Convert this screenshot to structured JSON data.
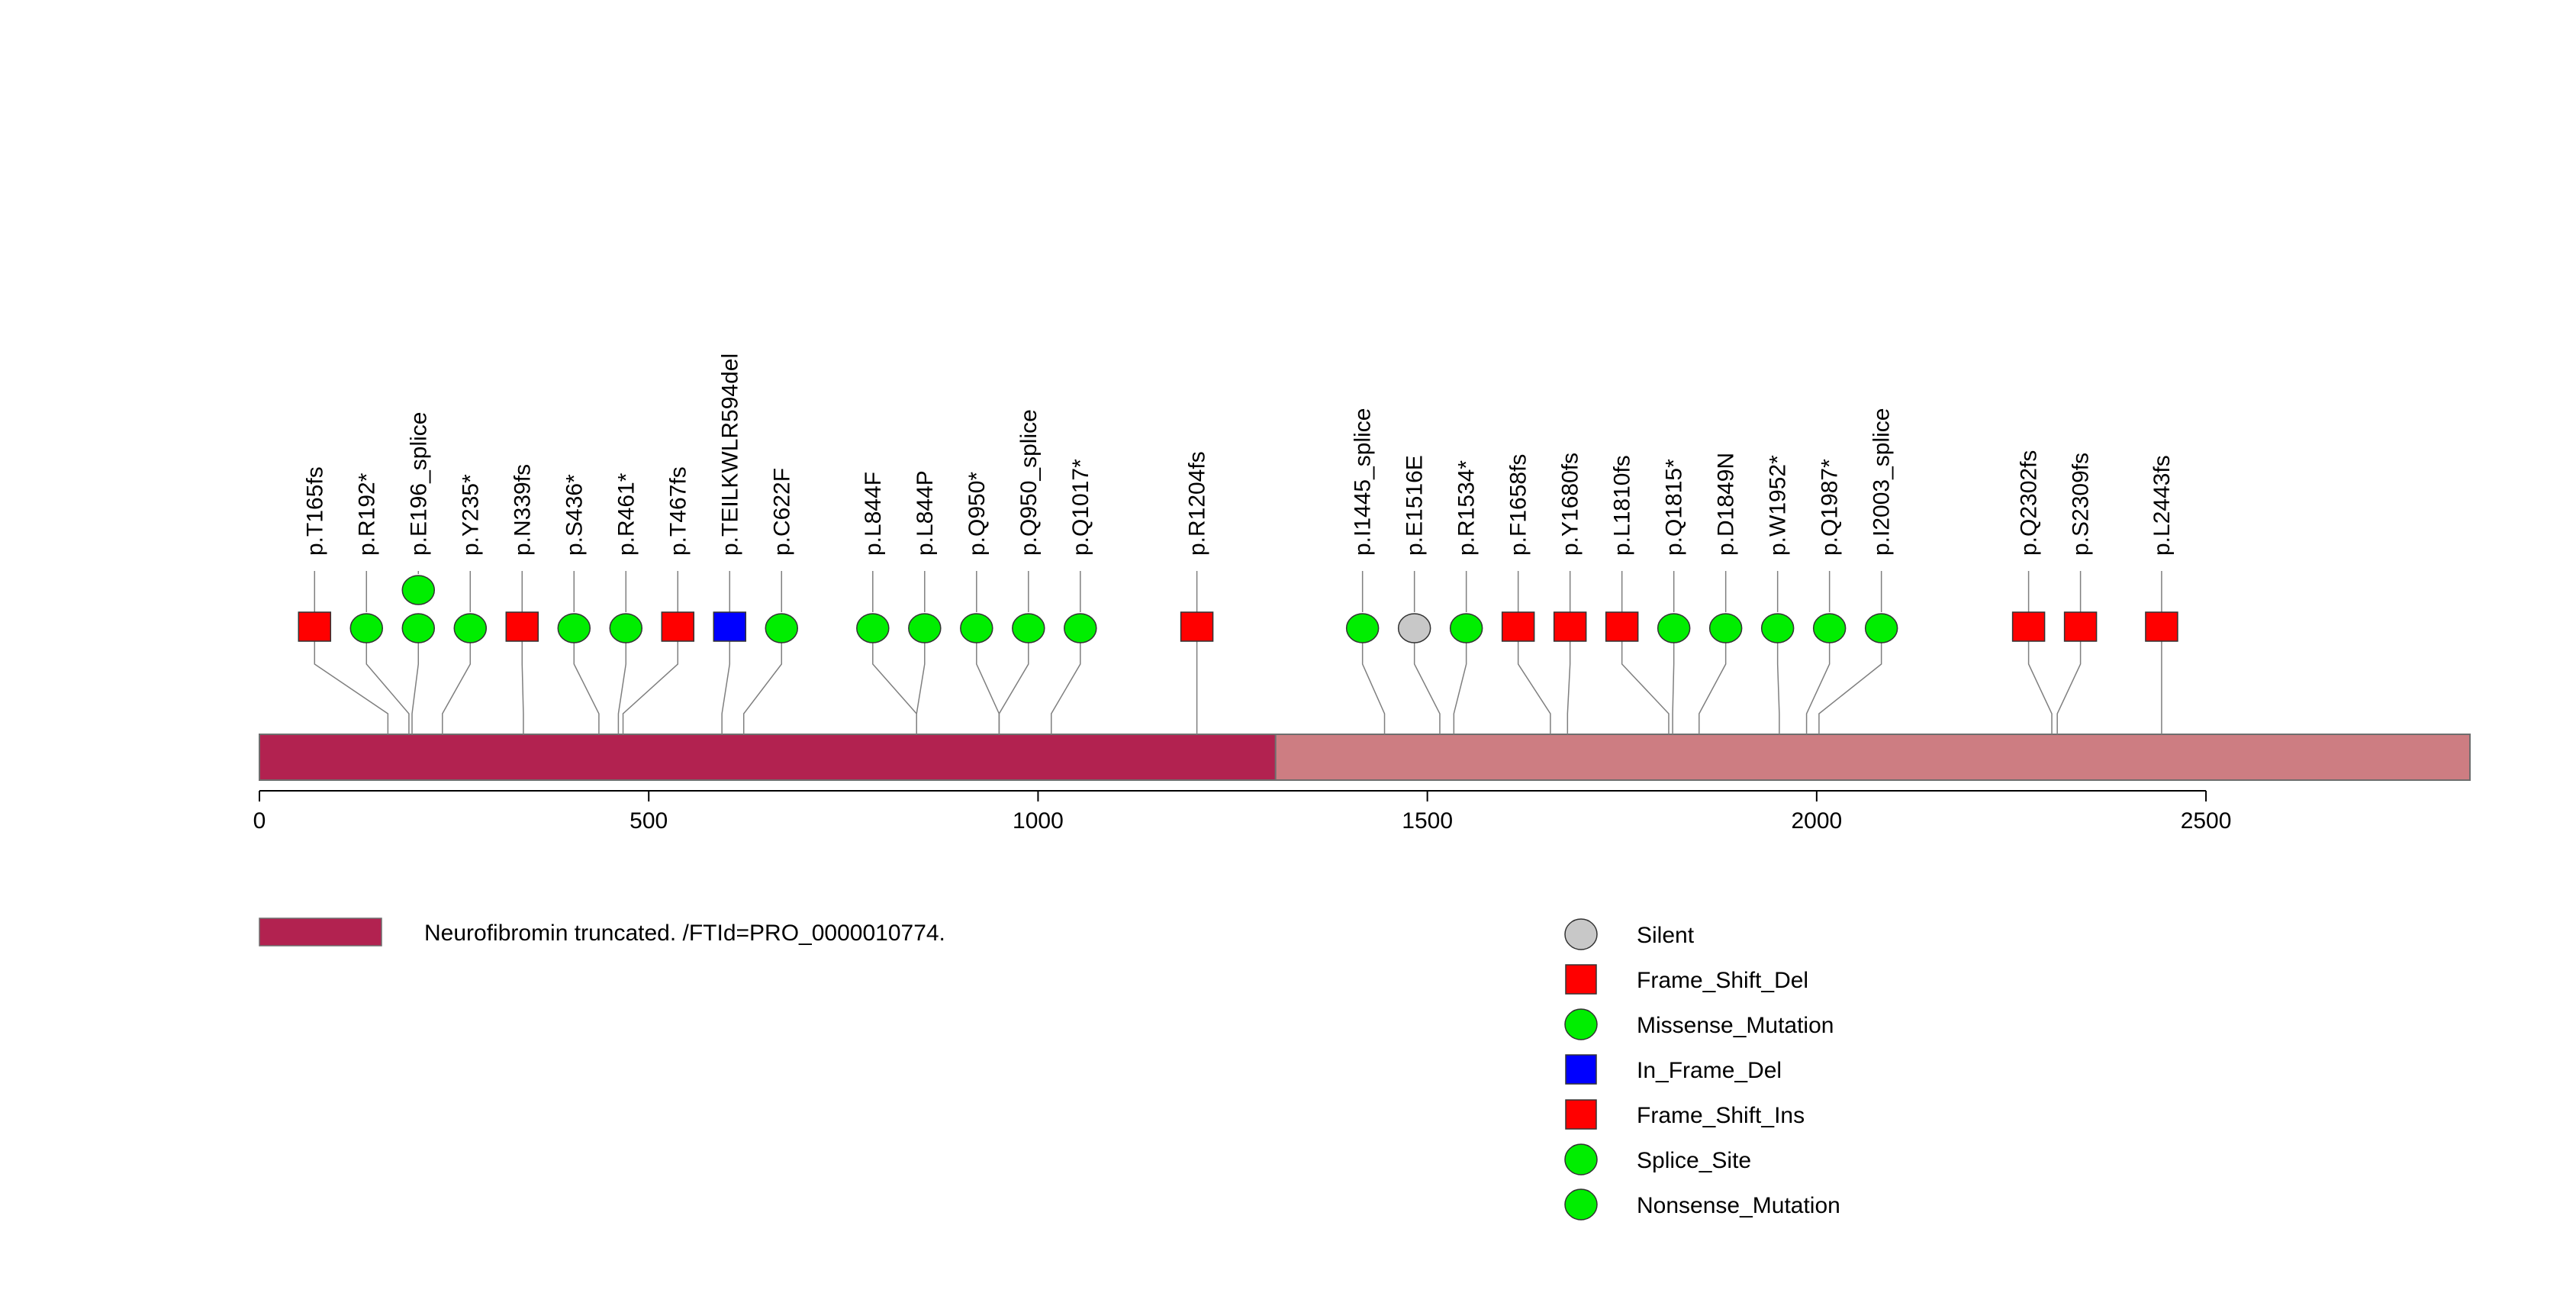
{
  "chart_data": {
    "type": "lollipop",
    "protein_length": 2839,
    "xlim": [
      0,
      2839
    ],
    "ticks": [
      0,
      500,
      1000,
      1500,
      2000,
      2500
    ],
    "domains": [
      {
        "name": "Neurofibromin truncated. /FTId=PRO_0000010774.",
        "start": 0,
        "end": 1305,
        "color": "#b22250"
      }
    ],
    "protein_bar_color": "#cd7d82",
    "mutations": [
      {
        "label": "p.T165fs",
        "pos": 165,
        "type": "Frame_Shift_Del",
        "count": 1
      },
      {
        "label": "p.R192*",
        "pos": 192,
        "type": "Nonsense_Mutation",
        "count": 1
      },
      {
        "label": "p.E196_splice",
        "pos": 196,
        "type": "Splice_Site",
        "count": 2
      },
      {
        "label": "p.Y235*",
        "pos": 235,
        "type": "Nonsense_Mutation",
        "count": 1
      },
      {
        "label": "p.N339fs",
        "pos": 339,
        "type": "Frame_Shift_Del",
        "count": 1
      },
      {
        "label": "p.S436*",
        "pos": 436,
        "type": "Nonsense_Mutation",
        "count": 1
      },
      {
        "label": "p.R461*",
        "pos": 461,
        "type": "Nonsense_Mutation",
        "count": 1
      },
      {
        "label": "p.T467fs",
        "pos": 467,
        "type": "Frame_Shift_Del",
        "count": 1
      },
      {
        "label": "p.TEILKWLR594del",
        "pos": 594,
        "type": "In_Frame_Del",
        "count": 1
      },
      {
        "label": "p.C622F",
        "pos": 622,
        "type": "Missense_Mutation",
        "count": 1
      },
      {
        "label": "p.L844F",
        "pos": 844,
        "type": "Missense_Mutation",
        "count": 1
      },
      {
        "label": "p.L844P",
        "pos": 844,
        "type": "Missense_Mutation",
        "count": 1
      },
      {
        "label": "p.Q950*",
        "pos": 950,
        "type": "Nonsense_Mutation",
        "count": 1
      },
      {
        "label": "p.Q950_splice",
        "pos": 950,
        "type": "Splice_Site",
        "count": 1
      },
      {
        "label": "p.Q1017*",
        "pos": 1017,
        "type": "Nonsense_Mutation",
        "count": 1
      },
      {
        "label": "p.R1204fs",
        "pos": 1204,
        "type": "Frame_Shift_Del",
        "count": 1
      },
      {
        "label": "p.I1445_splice",
        "pos": 1445,
        "type": "Splice_Site",
        "count": 1
      },
      {
        "label": "p.E1516E",
        "pos": 1516,
        "type": "Silent",
        "count": 1
      },
      {
        "label": "p.R1534*",
        "pos": 1534,
        "type": "Nonsense_Mutation",
        "count": 1
      },
      {
        "label": "p.F1658fs",
        "pos": 1658,
        "type": "Frame_Shift_Del",
        "count": 1
      },
      {
        "label": "p.Y1680fs",
        "pos": 1680,
        "type": "Frame_Shift_Del",
        "count": 1
      },
      {
        "label": "p.L1810fs",
        "pos": 1810,
        "type": "Frame_Shift_Del",
        "count": 1
      },
      {
        "label": "p.Q1815*",
        "pos": 1815,
        "type": "Nonsense_Mutation",
        "count": 1
      },
      {
        "label": "p.D1849N",
        "pos": 1849,
        "type": "Missense_Mutation",
        "count": 1
      },
      {
        "label": "p.W1952*",
        "pos": 1952,
        "type": "Nonsense_Mutation",
        "count": 1
      },
      {
        "label": "p.Q1987*",
        "pos": 1987,
        "type": "Nonsense_Mutation",
        "count": 1
      },
      {
        "label": "p.I2003_splice",
        "pos": 2003,
        "type": "Splice_Site",
        "count": 1
      },
      {
        "label": "p.Q2302fs",
        "pos": 2302,
        "type": "Frame_Shift_Del",
        "count": 1
      },
      {
        "label": "p.S2309fs",
        "pos": 2309,
        "type": "Frame_Shift_Del",
        "count": 1
      },
      {
        "label": "p.L2443fs",
        "pos": 2443,
        "type": "Frame_Shift_Del",
        "count": 1
      }
    ],
    "legend": [
      {
        "label": "Silent",
        "shape": "circle",
        "color": "#c8c8c8"
      },
      {
        "label": "Frame_Shift_Del",
        "shape": "square",
        "color": "#ff0000"
      },
      {
        "label": "Missense_Mutation",
        "shape": "circle",
        "color": "#00ee00"
      },
      {
        "label": "In_Frame_Del",
        "shape": "square",
        "color": "#0000ff"
      },
      {
        "label": "Frame_Shift_Ins",
        "shape": "square",
        "color": "#ff0000"
      },
      {
        "label": "Splice_Site",
        "shape": "circle",
        "color": "#00ee00"
      },
      {
        "label": "Nonsense_Mutation",
        "shape": "circle",
        "color": "#00ee00"
      }
    ]
  }
}
